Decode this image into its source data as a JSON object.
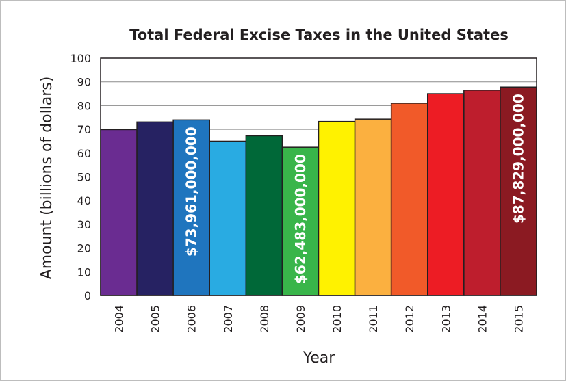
{
  "chart_data": {
    "type": "bar",
    "title": "Total Federal Excise Taxes in the United States",
    "xlabel": "Year",
    "ylabel": "Amount (billions of dollars)",
    "ylim": [
      0,
      100
    ],
    "yticks": [
      "0",
      "10",
      "20",
      "30",
      "40",
      "50",
      "60",
      "70",
      "80",
      "90",
      "100"
    ],
    "grid": true,
    "categories": [
      "2004",
      "2005",
      "2006",
      "2007",
      "2008",
      "2009",
      "2010",
      "2011",
      "2012",
      "2013",
      "2014",
      "2015"
    ],
    "values": [
      69.9,
      73.1,
      73.961,
      65.0,
      67.3,
      62.483,
      73.3,
      74.3,
      81.0,
      85.0,
      86.5,
      87.829
    ],
    "colors": [
      "#6a2c91",
      "#262262",
      "#1f75be",
      "#29abe2",
      "#006838",
      "#39b54a",
      "#fff200",
      "#fbb040",
      "#f15a29",
      "#ed1c24",
      "#be1e2d",
      "#8b1a22"
    ],
    "bar_labels": [
      "",
      "",
      "$73,961,000,000",
      "",
      "",
      "$62,483,000,000",
      "",
      "",
      "",
      "",
      "",
      "$87,829,000,000"
    ]
  }
}
